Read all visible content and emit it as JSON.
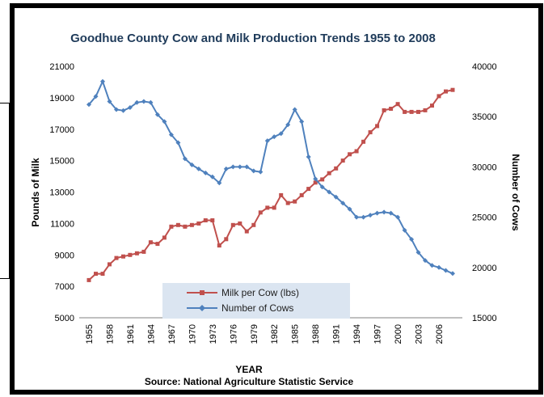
{
  "chart_data": {
    "type": "line",
    "title": "Goodhue County Cow and Milk Production Trends 1955 to 2008",
    "xlabel": "YEAR",
    "source": "Source: National Agriculture Statistic Service",
    "x": [
      1955,
      1956,
      1957,
      1958,
      1959,
      1960,
      1961,
      1962,
      1963,
      1964,
      1965,
      1966,
      1967,
      1968,
      1969,
      1970,
      1971,
      1972,
      1973,
      1974,
      1975,
      1976,
      1977,
      1978,
      1979,
      1980,
      1981,
      1982,
      1983,
      1984,
      1985,
      1986,
      1987,
      1988,
      1989,
      1990,
      1991,
      1992,
      1993,
      1994,
      1995,
      1996,
      1997,
      1998,
      1999,
      2000,
      2001,
      2002,
      2003,
      2004,
      2005,
      2006,
      2007,
      2008
    ],
    "x_tick_labels": [
      "1955",
      "1958",
      "1961",
      "1964",
      "1967",
      "1970",
      "1973",
      "1976",
      "1979",
      "1982",
      "1985",
      "1988",
      "1991",
      "1994",
      "1997",
      "2000",
      "2003",
      "2006"
    ],
    "y_left": {
      "label": "Pounds of Milk",
      "range": [
        5000,
        21000
      ],
      "ticks": [
        "5000",
        "7000",
        "9000",
        "11000",
        "13000",
        "15000",
        "17000",
        "19000",
        "21000"
      ]
    },
    "y_right": {
      "label": "Number of Cows",
      "range": [
        15000,
        40000
      ],
      "ticks": [
        "15000",
        "20000",
        "25000",
        "30000",
        "35000",
        "40000"
      ]
    },
    "grid": false,
    "legend_position": "bottom-left",
    "series": [
      {
        "name": "Milk per Cow (lbs)",
        "axis": "left",
        "color": "#c0504d",
        "marker": "square",
        "values": [
          7400,
          7800,
          7800,
          8400,
          8800,
          8900,
          9000,
          9100,
          9200,
          9800,
          9700,
          10100,
          10800,
          10900,
          10800,
          10900,
          11000,
          11200,
          11200,
          9600,
          10000,
          10900,
          11000,
          10500,
          10900,
          11700,
          12000,
          12000,
          12800,
          12300,
          12400,
          12800,
          13200,
          13600,
          13800,
          14200,
          14500,
          15000,
          15400,
          15600,
          16200,
          16800,
          17200,
          18200,
          18300,
          18600,
          18100,
          18100,
          18100,
          18200,
          18500,
          19100,
          19400,
          19500
        ]
      },
      {
        "name": "Number of Cows",
        "axis": "right",
        "color": "#4f81bd",
        "marker": "diamond",
        "values": [
          36200,
          37000,
          38500,
          36500,
          35700,
          35600,
          35900,
          36400,
          36500,
          36400,
          35200,
          34500,
          33200,
          32400,
          30800,
          30200,
          29800,
          29400,
          29000,
          28400,
          29800,
          30000,
          30000,
          30000,
          29600,
          29500,
          32600,
          33000,
          33300,
          34200,
          35700,
          34500,
          31000,
          28800,
          28000,
          27500,
          27000,
          26400,
          25800,
          25000,
          25000,
          25200,
          25400,
          25500,
          25400,
          25000,
          23700,
          22800,
          21500,
          20700,
          20200,
          20000,
          19700,
          19400
        ]
      }
    ]
  }
}
